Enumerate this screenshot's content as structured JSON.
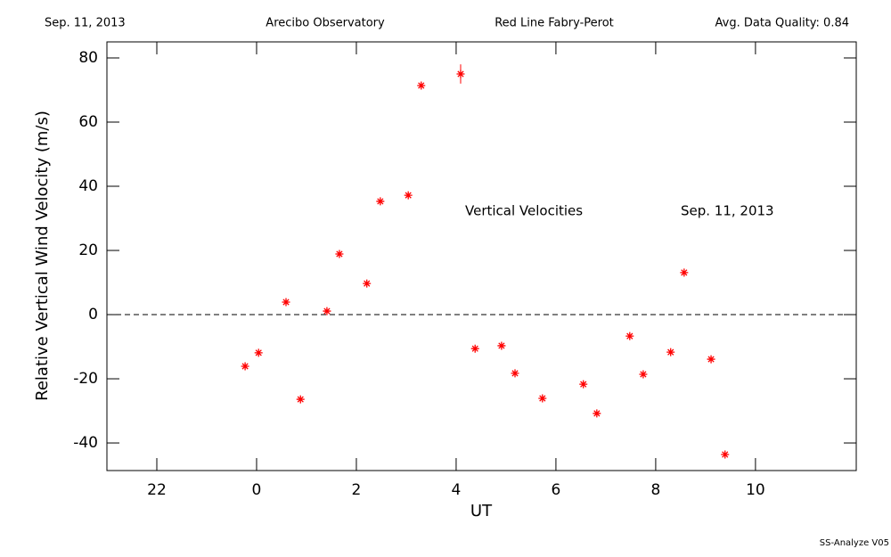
{
  "header": {
    "date": "Sep. 11, 2013",
    "site": "Arecibo Observatory",
    "instrument": "Red Line Fabry-Perot",
    "quality": "Avg. Data Quality: 0.84"
  },
  "footer": "SS-Analyze V05",
  "chart_data": {
    "type": "scatter",
    "x_label": "UT",
    "y_label": "Relative Vertical Wind Velocity (m/s)",
    "annotations": [
      "Vertical Velocities",
      "Sep. 11, 2013"
    ],
    "x": [
      -0.23,
      0.04,
      0.59,
      0.88,
      1.41,
      1.66,
      2.21,
      2.48,
      3.04,
      3.3,
      4.09,
      4.38,
      4.91,
      5.18,
      5.73,
      6.55,
      6.82,
      7.48,
      7.75,
      8.3,
      8.57,
      9.11,
      9.39
    ],
    "values": [
      -16.1,
      -11.9,
      3.9,
      -26.4,
      1.1,
      18.9,
      9.7,
      35.3,
      37.2,
      71.4,
      75.0,
      -10.6,
      -9.7,
      -18.3,
      -26.1,
      -21.7,
      -30.8,
      -6.7,
      -18.6,
      -11.7,
      13.1,
      -13.9,
      -43.6
    ],
    "errors": [
      null,
      null,
      null,
      null,
      null,
      null,
      null,
      null,
      null,
      null,
      3,
      null,
      null,
      null,
      null,
      null,
      null,
      null,
      null,
      null,
      null,
      null,
      null
    ],
    "color": "#ff0000",
    "reference_line": 0,
    "xlim": [
      -3,
      12.02
    ],
    "ylim": [
      -48.6,
      85
    ],
    "xticks": [
      {
        "value": -2,
        "label": "22"
      },
      0,
      2,
      4,
      6,
      8,
      10
    ],
    "yticks": [
      -40,
      -20,
      0,
      20,
      40,
      60,
      80
    ]
  }
}
